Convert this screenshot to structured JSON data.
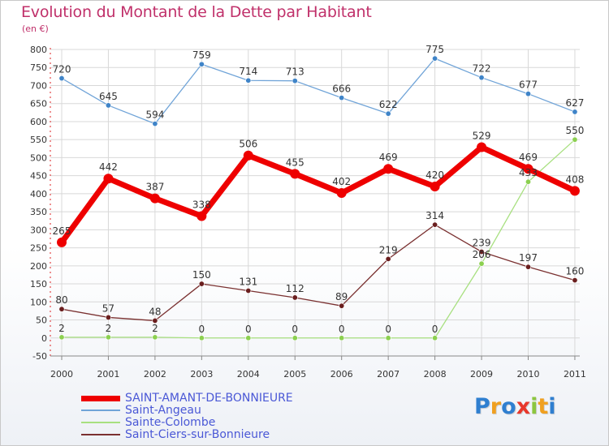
{
  "title": "Evolution du Montant de la Dette par Habitant",
  "subtitle": "(en €)",
  "colors": {
    "title": "#c0306a",
    "axis_text": "#333333",
    "grid": "#d8d8d8",
    "legend_text": "#4a58d6"
  },
  "logo": {
    "letters": [
      "P",
      "r",
      "o",
      "x",
      "i",
      "t",
      "i"
    ],
    "colors": [
      "#2f7fd0",
      "#f0a020",
      "#2f7fd0",
      "#e8382c",
      "#8cc63f",
      "#f0a020",
      "#2f7fd0"
    ]
  },
  "chart_data": {
    "type": "line",
    "x": [
      "2000",
      "2001",
      "2002",
      "2003",
      "2004",
      "2005",
      "2006",
      "2007",
      "2008",
      "2009",
      "2010",
      "2011"
    ],
    "yticks": [
      "800",
      "750",
      "700",
      "650",
      "600",
      "550",
      "500",
      "450",
      "400",
      "350",
      "300",
      "250",
      "200",
      "150",
      "100",
      "50",
      "0",
      "-50"
    ],
    "ylim": [
      -50,
      800
    ],
    "grid": true,
    "legend_position": "bottom-left",
    "series": [
      {
        "name": "SAINT-AMANT-DE-BONNIEURE",
        "color": "#ee0000",
        "marker": "#ee0000",
        "bold": true,
        "values": [
          265,
          442,
          387,
          338,
          506,
          455,
          402,
          469,
          420,
          529,
          469,
          408
        ],
        "labels": [
          "265",
          "442",
          "387",
          "338",
          "506",
          "455",
          "402",
          "469",
          "420",
          "529",
          "469",
          "408"
        ]
      },
      {
        "name": "Saint-Angeau",
        "color": "#70a4d8",
        "marker": "#3f84c8",
        "bold": false,
        "values": [
          720,
          645,
          594,
          759,
          714,
          713,
          666,
          622,
          775,
          722,
          677,
          627
        ],
        "labels": [
          "720",
          "645",
          "594",
          "759",
          "714",
          "713",
          "666",
          "622",
          "775",
          "722",
          "677",
          "627"
        ]
      },
      {
        "name": "Sainte-Colombe",
        "color": "#a8e080",
        "marker": "#8cd050",
        "bold": false,
        "values": [
          2,
          2,
          2,
          0,
          0,
          0,
          0,
          0,
          0,
          206,
          433,
          550
        ],
        "labels": [
          "2",
          "2",
          "2",
          "0",
          "0",
          "0",
          "0",
          "0",
          "0",
          "206",
          "433",
          "550"
        ]
      },
      {
        "name": "Saint-Ciers-sur-Bonnieure",
        "color": "#7a3030",
        "marker": "#6a1e1e",
        "bold": false,
        "values": [
          80,
          57,
          48,
          150,
          131,
          112,
          89,
          219,
          314,
          239,
          197,
          160
        ],
        "labels": [
          "80",
          "57",
          "48",
          "150",
          "131",
          "112",
          "89",
          "219",
          "314",
          "239",
          "197",
          "160"
        ]
      }
    ]
  }
}
